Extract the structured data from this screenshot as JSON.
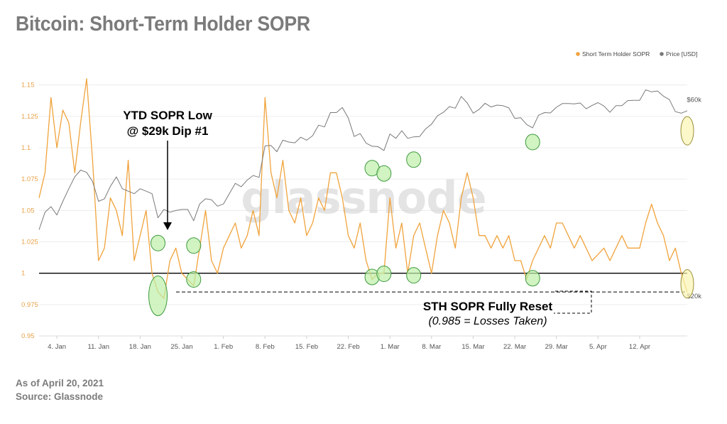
{
  "title": "Bitcoin: Short-Term Holder SOPR",
  "footer": {
    "date_line": "As of April 20, 2021",
    "source_line": "Source: Glassnode"
  },
  "watermark": "glassnode",
  "colors": {
    "sopr": "#f0a33c",
    "price": "#7a7a7a",
    "highlight_green": "#bdf0a8",
    "highlight_green_border": "#3f9a3f",
    "highlight_yellow": "#fbf5b3",
    "highlight_yellow_border": "#9a8f3a"
  },
  "annotations": {
    "ytd_low_line1": "YTD SOPR Low",
    "ytd_low_line2": "@ $29k Dip #1",
    "reset_line1": "STH SOPR Fully Reset",
    "reset_line2": "(0.985 = Losses Taken)"
  },
  "chart_data": {
    "type": "line",
    "title": "Bitcoin: Short-Term Holder SOPR",
    "legend": [
      "Short Term Holder SOPR",
      "Price [USD]"
    ],
    "legend_position": "top-right",
    "grid": true,
    "x_ticks": [
      "4. Jan",
      "11. Jan",
      "18. Jan",
      "25. Jan",
      "1. Feb",
      "8. Feb",
      "15. Feb",
      "22. Feb",
      "1. Mar",
      "8. Mar",
      "15. Mar",
      "22. Mar",
      "29. Mar",
      "5. Apr",
      "12. Apr"
    ],
    "x_range": [
      "2021-01-01",
      "2021-04-20"
    ],
    "y_left": {
      "label": "",
      "range": [
        0.95,
        1.16
      ],
      "ticks": [
        "0.95",
        "0.975",
        "1",
        "1.025",
        "1.05",
        "1.075",
        "1.1",
        "1.125",
        "1.15"
      ]
    },
    "y_right": {
      "label": "",
      "ticks": [
        "$20k",
        "$60k"
      ]
    },
    "reference_lines": [
      {
        "name": "SOPR = 1",
        "value": 1.0,
        "style": "solid"
      },
      {
        "name": "Reset level",
        "value": 0.985,
        "style": "dashed"
      }
    ],
    "series": [
      {
        "name": "Short Term Holder SOPR",
        "axis": "left",
        "points": [
          [
            "2021-01-01",
            1.06
          ],
          [
            "2021-01-02",
            1.08
          ],
          [
            "2021-01-03",
            1.14
          ],
          [
            "2021-01-04",
            1.1
          ],
          [
            "2021-01-05",
            1.13
          ],
          [
            "2021-01-06",
            1.12
          ],
          [
            "2021-01-07",
            1.08
          ],
          [
            "2021-01-08",
            1.12
          ],
          [
            "2021-01-09",
            1.155
          ],
          [
            "2021-01-10",
            1.09
          ],
          [
            "2021-01-11",
            1.01
          ],
          [
            "2021-01-12",
            1.02
          ],
          [
            "2021-01-13",
            1.06
          ],
          [
            "2021-01-14",
            1.05
          ],
          [
            "2021-01-15",
            1.03
          ],
          [
            "2021-01-16",
            1.09
          ],
          [
            "2021-01-17",
            1.01
          ],
          [
            "2021-01-18",
            1.03
          ],
          [
            "2021-01-19",
            1.05
          ],
          [
            "2021-01-20",
            1.0
          ],
          [
            "2021-01-21",
            0.985
          ],
          [
            "2021-01-22",
            0.98
          ],
          [
            "2021-01-23",
            1.01
          ],
          [
            "2021-01-24",
            1.02
          ],
          [
            "2021-01-25",
            1.0
          ],
          [
            "2021-01-26",
            0.995
          ],
          [
            "2021-01-27",
            0.99
          ],
          [
            "2021-01-28",
            1.02
          ],
          [
            "2021-01-29",
            1.05
          ],
          [
            "2021-01-30",
            1.01
          ],
          [
            "2021-01-31",
            1.0
          ],
          [
            "2021-02-01",
            1.02
          ],
          [
            "2021-02-02",
            1.03
          ],
          [
            "2021-02-03",
            1.04
          ],
          [
            "2021-02-04",
            1.02
          ],
          [
            "2021-02-05",
            1.03
          ],
          [
            "2021-02-06",
            1.05
          ],
          [
            "2021-02-07",
            1.03
          ],
          [
            "2021-02-08",
            1.14
          ],
          [
            "2021-02-09",
            1.08
          ],
          [
            "2021-02-10",
            1.06
          ],
          [
            "2021-02-11",
            1.09
          ],
          [
            "2021-02-12",
            1.05
          ],
          [
            "2021-02-13",
            1.04
          ],
          [
            "2021-02-14",
            1.06
          ],
          [
            "2021-02-15",
            1.03
          ],
          [
            "2021-02-16",
            1.04
          ],
          [
            "2021-02-17",
            1.06
          ],
          [
            "2021-02-18",
            1.05
          ],
          [
            "2021-02-19",
            1.08
          ],
          [
            "2021-02-20",
            1.08
          ],
          [
            "2021-02-21",
            1.06
          ],
          [
            "2021-02-22",
            1.03
          ],
          [
            "2021-02-23",
            1.02
          ],
          [
            "2021-02-24",
            1.04
          ],
          [
            "2021-02-25",
            1.01
          ],
          [
            "2021-02-26",
            0.995
          ],
          [
            "2021-02-27",
            1.0
          ],
          [
            "2021-02-28",
            1.0
          ],
          [
            "2021-03-01",
            1.06
          ],
          [
            "2021-03-02",
            1.02
          ],
          [
            "2021-03-03",
            1.04
          ],
          [
            "2021-03-04",
            1.0
          ],
          [
            "2021-03-05",
            1.03
          ],
          [
            "2021-03-06",
            1.04
          ],
          [
            "2021-03-07",
            1.02
          ],
          [
            "2021-03-08",
            1.0
          ],
          [
            "2021-03-09",
            1.03
          ],
          [
            "2021-03-10",
            1.05
          ],
          [
            "2021-03-11",
            1.04
          ],
          [
            "2021-03-12",
            1.02
          ],
          [
            "2021-03-13",
            1.06
          ],
          [
            "2021-03-14",
            1.08
          ],
          [
            "2021-03-15",
            1.06
          ],
          [
            "2021-03-16",
            1.03
          ],
          [
            "2021-03-17",
            1.03
          ],
          [
            "2021-03-18",
            1.02
          ],
          [
            "2021-03-19",
            1.03
          ],
          [
            "2021-03-20",
            1.02
          ],
          [
            "2021-03-21",
            1.03
          ],
          [
            "2021-03-22",
            1.01
          ],
          [
            "2021-03-23",
            1.01
          ],
          [
            "2021-03-24",
            0.995
          ],
          [
            "2021-03-25",
            1.01
          ],
          [
            "2021-03-26",
            1.02
          ],
          [
            "2021-03-27",
            1.03
          ],
          [
            "2021-03-28",
            1.02
          ],
          [
            "2021-03-29",
            1.04
          ],
          [
            "2021-03-30",
            1.04
          ],
          [
            "2021-03-31",
            1.03
          ],
          [
            "2021-04-01",
            1.02
          ],
          [
            "2021-04-02",
            1.03
          ],
          [
            "2021-04-03",
            1.02
          ],
          [
            "2021-04-04",
            1.01
          ],
          [
            "2021-04-05",
            1.015
          ],
          [
            "2021-04-06",
            1.02
          ],
          [
            "2021-04-07",
            1.01
          ],
          [
            "2021-04-08",
            1.02
          ],
          [
            "2021-04-09",
            1.03
          ],
          [
            "2021-04-10",
            1.02
          ],
          [
            "2021-04-11",
            1.02
          ],
          [
            "2021-04-12",
            1.02
          ],
          [
            "2021-04-13",
            1.04
          ],
          [
            "2021-04-14",
            1.055
          ],
          [
            "2021-04-15",
            1.04
          ],
          [
            "2021-04-16",
            1.03
          ],
          [
            "2021-04-17",
            1.01
          ],
          [
            "2021-04-18",
            1.02
          ],
          [
            "2021-04-19",
            1.0
          ],
          [
            "2021-04-20",
            0.985
          ]
        ]
      },
      {
        "name": "Price [USD]",
        "axis": "right",
        "points": [
          [
            "2021-01-01",
            29000
          ],
          [
            "2021-01-02",
            32000
          ],
          [
            "2021-01-03",
            33000
          ],
          [
            "2021-01-04",
            31500
          ],
          [
            "2021-01-05",
            34000
          ],
          [
            "2021-01-06",
            36500
          ],
          [
            "2021-01-07",
            39000
          ],
          [
            "2021-01-08",
            40500
          ],
          [
            "2021-01-09",
            40000
          ],
          [
            "2021-01-10",
            38000
          ],
          [
            "2021-01-11",
            34000
          ],
          [
            "2021-01-12",
            34500
          ],
          [
            "2021-01-13",
            37000
          ],
          [
            "2021-01-14",
            39000
          ],
          [
            "2021-01-15",
            36500
          ],
          [
            "2021-01-16",
            36000
          ],
          [
            "2021-01-17",
            35500
          ],
          [
            "2021-01-18",
            36500
          ],
          [
            "2021-01-19",
            36000
          ],
          [
            "2021-01-20",
            35500
          ],
          [
            "2021-01-21",
            31000
          ],
          [
            "2021-01-22",
            32500
          ],
          [
            "2021-01-23",
            32000
          ],
          [
            "2021-01-24",
            32300
          ],
          [
            "2021-01-25",
            32500
          ],
          [
            "2021-01-26",
            32500
          ],
          [
            "2021-01-27",
            30500
          ],
          [
            "2021-01-28",
            33500
          ],
          [
            "2021-01-29",
            34500
          ],
          [
            "2021-01-30",
            34300
          ],
          [
            "2021-01-31",
            33100
          ],
          [
            "2021-02-01",
            33500
          ],
          [
            "2021-02-02",
            35500
          ],
          [
            "2021-02-03",
            37600
          ],
          [
            "2021-02-04",
            36900
          ],
          [
            "2021-02-05",
            38300
          ],
          [
            "2021-02-06",
            39300
          ],
          [
            "2021-02-07",
            38900
          ],
          [
            "2021-02-08",
            46400
          ],
          [
            "2021-02-09",
            46500
          ],
          [
            "2021-02-10",
            44900
          ],
          [
            "2021-02-11",
            47900
          ],
          [
            "2021-02-12",
            47400
          ],
          [
            "2021-02-13",
            47200
          ],
          [
            "2021-02-14",
            48700
          ],
          [
            "2021-02-15",
            47900
          ],
          [
            "2021-02-16",
            49100
          ],
          [
            "2021-02-17",
            52100
          ],
          [
            "2021-02-18",
            51600
          ],
          [
            "2021-02-19",
            55900
          ],
          [
            "2021-02-20",
            55900
          ],
          [
            "2021-02-21",
            57500
          ],
          [
            "2021-02-22",
            54200
          ],
          [
            "2021-02-23",
            48900
          ],
          [
            "2021-02-24",
            49700
          ],
          [
            "2021-02-25",
            47100
          ],
          [
            "2021-02-26",
            46300
          ],
          [
            "2021-02-27",
            46200
          ],
          [
            "2021-02-28",
            45200
          ],
          [
            "2021-03-01",
            49600
          ],
          [
            "2021-03-02",
            48400
          ],
          [
            "2021-03-03",
            50500
          ],
          [
            "2021-03-04",
            48400
          ],
          [
            "2021-03-05",
            48800
          ],
          [
            "2021-03-06",
            48900
          ],
          [
            "2021-03-07",
            51000
          ],
          [
            "2021-03-08",
            52400
          ],
          [
            "2021-03-09",
            54900
          ],
          [
            "2021-03-10",
            56000
          ],
          [
            "2021-03-11",
            57800
          ],
          [
            "2021-03-12",
            57300
          ],
          [
            "2021-03-13",
            61200
          ],
          [
            "2021-03-14",
            59000
          ],
          [
            "2021-03-15",
            55700
          ],
          [
            "2021-03-16",
            56900
          ],
          [
            "2021-03-17",
            58900
          ],
          [
            "2021-03-18",
            57700
          ],
          [
            "2021-03-19",
            58300
          ],
          [
            "2021-03-20",
            58100
          ],
          [
            "2021-03-21",
            57400
          ],
          [
            "2021-03-22",
            54100
          ],
          [
            "2021-03-23",
            54300
          ],
          [
            "2021-03-24",
            52300
          ],
          [
            "2021-03-25",
            51300
          ],
          [
            "2021-03-26",
            55100
          ],
          [
            "2021-03-27",
            55900
          ],
          [
            "2021-03-28",
            55800
          ],
          [
            "2021-03-29",
            57600
          ],
          [
            "2021-03-30",
            58800
          ],
          [
            "2021-03-31",
            58800
          ],
          [
            "2021-04-01",
            58700
          ],
          [
            "2021-04-02",
            59000
          ],
          [
            "2021-04-03",
            57100
          ],
          [
            "2021-04-04",
            58200
          ],
          [
            "2021-04-05",
            59100
          ],
          [
            "2021-04-06",
            58000
          ],
          [
            "2021-04-07",
            56000
          ],
          [
            "2021-04-08",
            58100
          ],
          [
            "2021-04-09",
            58100
          ],
          [
            "2021-04-10",
            59800
          ],
          [
            "2021-04-11",
            59900
          ],
          [
            "2021-04-12",
            59900
          ],
          [
            "2021-04-13",
            63500
          ],
          [
            "2021-04-14",
            62800
          ],
          [
            "2021-04-15",
            63100
          ],
          [
            "2021-04-16",
            61300
          ],
          [
            "2021-04-17",
            60100
          ],
          [
            "2021-04-18",
            56200
          ],
          [
            "2021-04-19",
            55700
          ],
          [
            "2021-04-20",
            56500
          ]
        ]
      }
    ],
    "highlights": [
      {
        "date": "2021-01-21",
        "value": 0.982,
        "series": "Short Term Holder SOPR",
        "color": "green",
        "size": "large"
      },
      {
        "date": "2021-01-21",
        "value": 1.024,
        "series": "Short Term Holder SOPR",
        "color": "green"
      },
      {
        "date": "2021-01-27",
        "value": 1.022,
        "series": "Short Term Holder SOPR",
        "color": "green"
      },
      {
        "date": "2021-01-27",
        "value": 0.995,
        "series": "Short Term Holder SOPR",
        "color": "green"
      },
      {
        "date": "2021-02-26",
        "value": 1.0837,
        "series": "Short Term Holder SOPR",
        "color": "green"
      },
      {
        "date": "2021-02-26",
        "value": 0.997,
        "series": "Short Term Holder SOPR",
        "color": "green"
      },
      {
        "date": "2021-02-28",
        "value": 1.0795,
        "series": "Short Term Holder SOPR",
        "color": "green"
      },
      {
        "date": "2021-02-28",
        "value": 0.9995,
        "series": "Short Term Holder SOPR",
        "color": "green"
      },
      {
        "date": "2021-03-05",
        "value": 1.0905,
        "series": "Short Term Holder SOPR",
        "color": "green"
      },
      {
        "date": "2021-03-05",
        "value": 0.9983,
        "series": "Short Term Holder SOPR",
        "color": "green"
      },
      {
        "date": "2021-03-25",
        "value": 1.1045,
        "series": "Short Term Holder SOPR",
        "color": "green"
      },
      {
        "date": "2021-03-25",
        "value": 0.996,
        "series": "Short Term Holder SOPR",
        "color": "green"
      },
      {
        "date": "2021-04-20",
        "value": 1.1135,
        "series": "Short Term Holder SOPR",
        "color": "yellow"
      },
      {
        "date": "2021-04-20",
        "value": 0.9915,
        "series": "Short Term Holder SOPR",
        "color": "yellow"
      }
    ]
  }
}
